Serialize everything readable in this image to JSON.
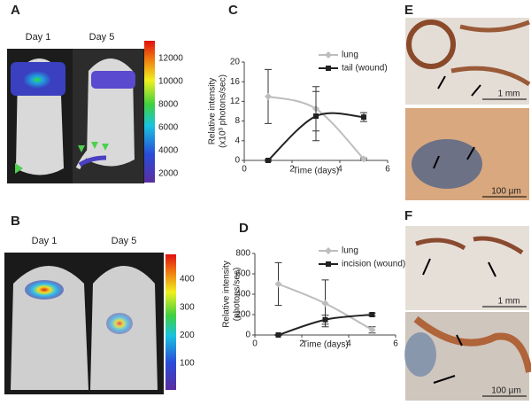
{
  "panels": {
    "A": {
      "label": "A",
      "days": [
        "Day 1",
        "Day 5"
      ],
      "colorbar": [
        12000,
        10000,
        8000,
        6000,
        4000,
        2000
      ]
    },
    "B": {
      "label": "B",
      "days": [
        "Day 1",
        "Day 5"
      ],
      "colorbar": [
        400,
        300,
        200,
        100
      ]
    },
    "E": {
      "label": "E",
      "scalebars": [
        "1 mm",
        "100 µm"
      ]
    },
    "F": {
      "label": "F",
      "scalebars": [
        "1 mm",
        "100 µm"
      ]
    }
  },
  "chart_data": [
    {
      "type": "line",
      "label": "C",
      "ylabel": [
        "Relative intensity",
        "(x10³ photons/sec)"
      ],
      "xlabel": "Time (days)",
      "x": [
        1,
        3,
        5
      ],
      "xlim": [
        0,
        6
      ],
      "xticks": [
        0,
        2,
        4,
        6
      ],
      "ylim": [
        0,
        20
      ],
      "yticks": [
        0,
        4,
        8,
        12,
        16,
        20
      ],
      "series": [
        {
          "name": "lung",
          "color": "#bdbdbd",
          "marker": "diamond",
          "values": [
            13,
            10.5,
            0.3
          ],
          "errors": [
            5.5,
            4.5,
            0.2
          ]
        },
        {
          "name": "tail (wound)",
          "color": "#222222",
          "marker": "square",
          "values": [
            0,
            9,
            8.8
          ],
          "errors": [
            0.2,
            5,
            0.9
          ]
        }
      ]
    },
    {
      "type": "line",
      "label": "D",
      "ylabel": [
        "Relative intensity",
        "(photons/sec)"
      ],
      "xlabel": "Time (days)",
      "x": [
        1,
        3,
        5
      ],
      "xlim": [
        0,
        6
      ],
      "xticks": [
        0,
        2,
        4,
        6
      ],
      "ylim": [
        0,
        800
      ],
      "yticks": [
        0,
        200,
        400,
        600,
        800
      ],
      "series": [
        {
          "name": "lung",
          "color": "#bdbdbd",
          "marker": "diamond",
          "values": [
            500,
            310,
            50
          ],
          "errors": [
            210,
            230,
            30
          ]
        },
        {
          "name": "incision (wound)",
          "color": "#222222",
          "marker": "square",
          "values": [
            0,
            150,
            200
          ],
          "errors": [
            5,
            45,
            15
          ]
        }
      ]
    }
  ]
}
